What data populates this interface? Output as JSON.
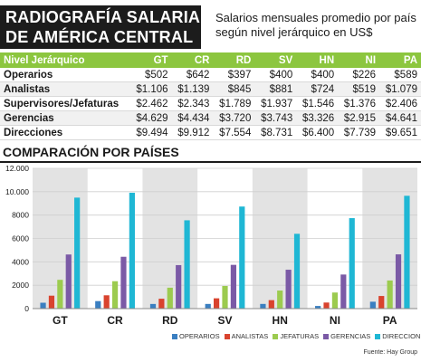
{
  "header": {
    "title_line1": "RADIOGRAFÍA SALARIAL",
    "title_line2": "DE AMÉRICA CENTRAL",
    "subtitle_line1": "Salarios mensuales promedio por país",
    "subtitle_line2": "según nivel jerárquico en US$"
  },
  "table": {
    "header": [
      "Nivel Jerárquico",
      "GT",
      "CR",
      "RD",
      "SV",
      "HN",
      "NI",
      "PA"
    ],
    "rows": [
      [
        "Operarios",
        "$502",
        "$642",
        "$397",
        "$400",
        "$400",
        "$226",
        "$589"
      ],
      [
        "Analistas",
        "$1.106",
        "$1.139",
        "$845",
        "$881",
        "$724",
        "$519",
        "$1.079"
      ],
      [
        "Supervisores/Jefaturas",
        "$2.462",
        "$2.343",
        "$1.789",
        "$1.937",
        "$1.546",
        "$1.376",
        "$2.406"
      ],
      [
        "Gerencias",
        "$4.629",
        "$4.434",
        "$3.720",
        "$3.743",
        "$3.326",
        "$2.915",
        "$4.641"
      ],
      [
        "Direcciones",
        "$9.494",
        "$9.912",
        "$7.554",
        "$8.731",
        "$6.400",
        "$7.739",
        "$9.651"
      ]
    ]
  },
  "section_title": "COMPARACIÓN POR PAÍSES",
  "source": "Fuente: Hay Group",
  "chart_data": {
    "type": "bar",
    "categories": [
      "GT",
      "CR",
      "RD",
      "SV",
      "HN",
      "NI",
      "PA"
    ],
    "series": [
      {
        "name": "OPERARIOS",
        "values": [
          502,
          642,
          397,
          400,
          400,
          226,
          589
        ],
        "color": "#3a7fc1"
      },
      {
        "name": "ANALISTAS",
        "values": [
          1106,
          1139,
          845,
          881,
          724,
          519,
          1079
        ],
        "color": "#d9432e"
      },
      {
        "name": "JEFATURAS",
        "values": [
          2462,
          2343,
          1789,
          1937,
          1546,
          1376,
          2406
        ],
        "color": "#9ccb4f"
      },
      {
        "name": "GERENCIAS",
        "values": [
          4629,
          4434,
          3720,
          3743,
          3326,
          2915,
          4641
        ],
        "color": "#7b5aa6"
      },
      {
        "name": "DIRECCIONES",
        "values": [
          9494,
          9912,
          7554,
          8731,
          6400,
          7739,
          9651
        ],
        "color": "#1fb7d4"
      }
    ],
    "ylim": [
      0,
      12000
    ],
    "yticks": [
      0,
      2000,
      4000,
      6000,
      8000,
      10000,
      12000
    ],
    "ytick_labels": [
      "0",
      "2000",
      "4000",
      "6000",
      "8000",
      "10.000",
      "12.000"
    ],
    "grid": true,
    "legend": "bottom",
    "colors": {
      "column_band": "#e3e3e3",
      "grid": "#cfcfcf",
      "table_header": "#8cc63f"
    }
  }
}
